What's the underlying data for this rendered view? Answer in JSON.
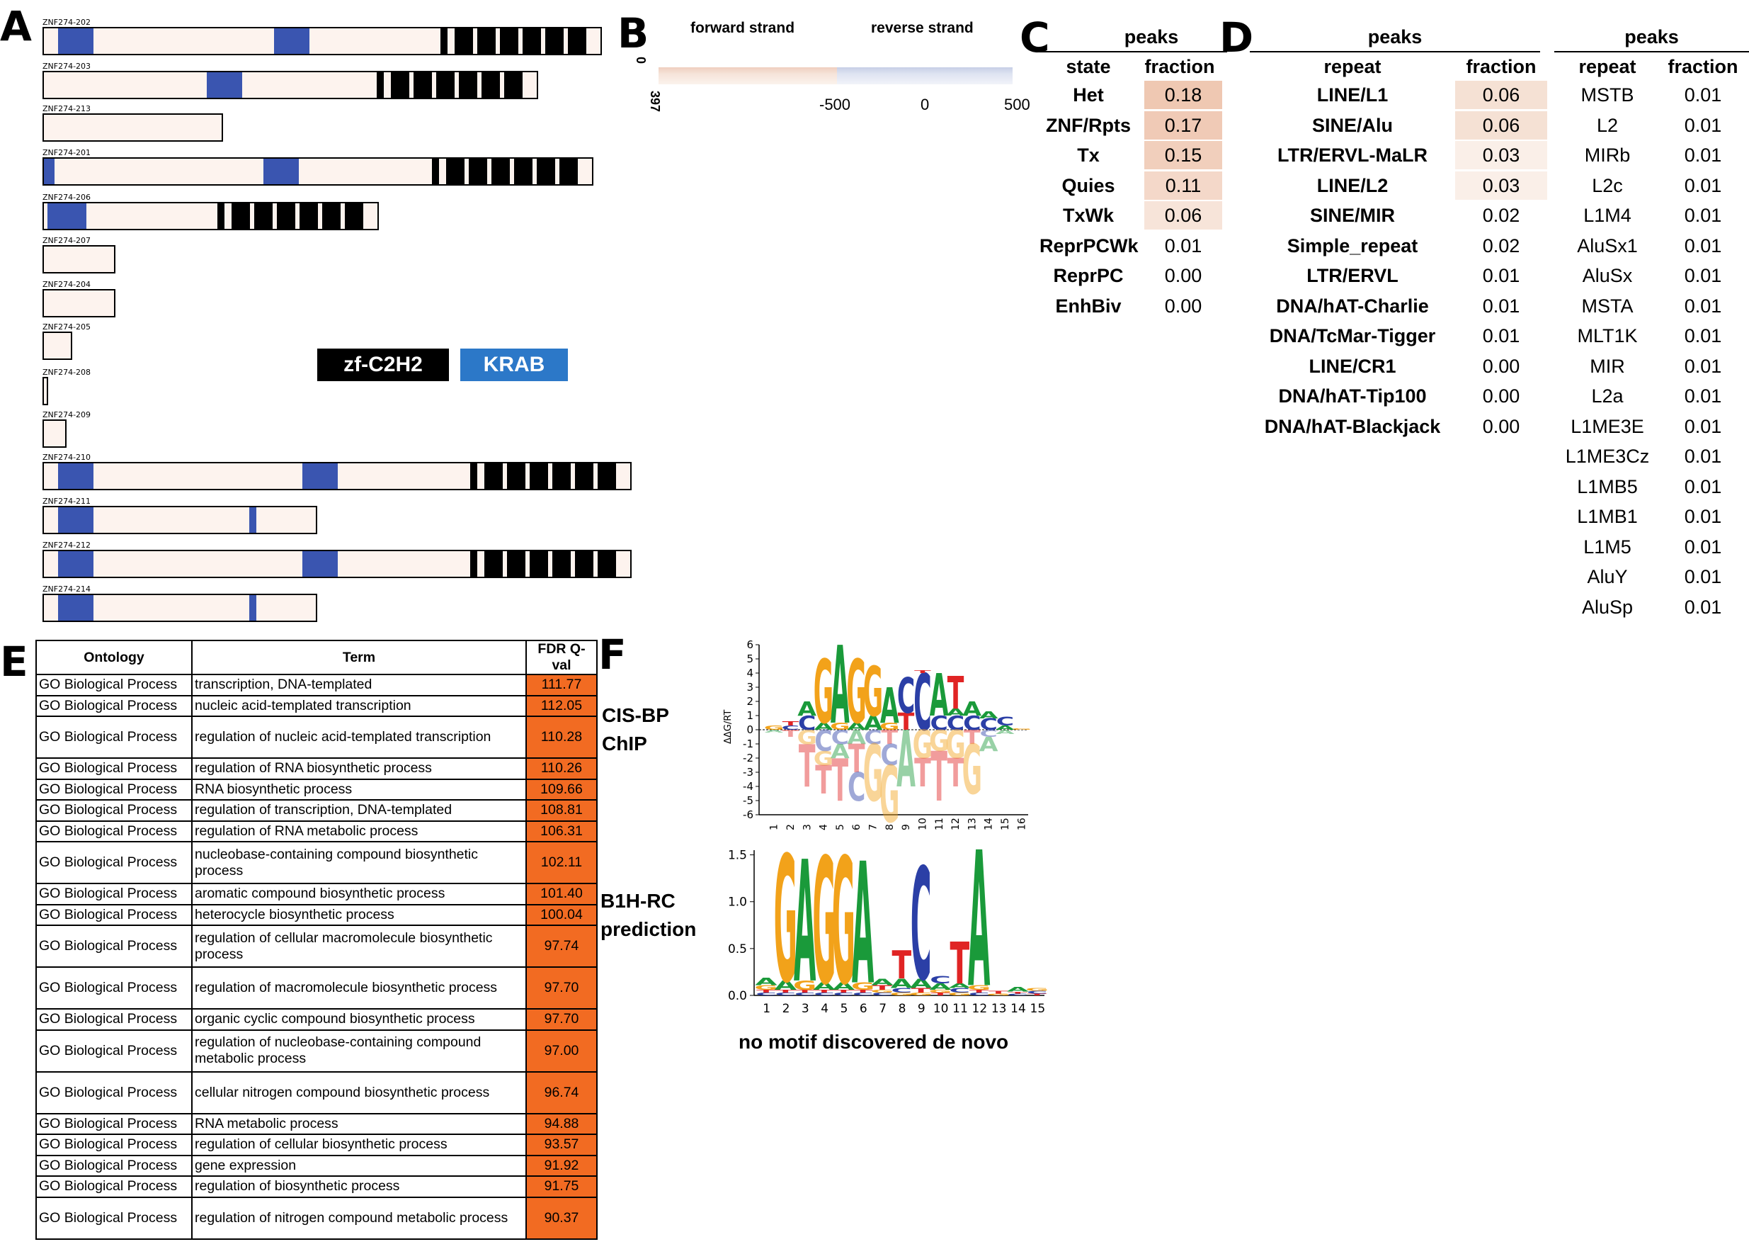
{
  "panel_labels": {
    "a": "A",
    "b": "B",
    "c": "C",
    "d": "D",
    "e": "E",
    "f": "F"
  },
  "colors": {
    "krab": "#3a55b0",
    "zf": "#000000",
    "transcript_fill": "#fdf3ee",
    "fdr_fill": "#f26b22",
    "legend_krab": "#2c78c8",
    "heat_top": "#f3d6c4"
  },
  "panel_a": {
    "transcripts": [
      {
        "name": "ZNF274-202",
        "length": 790,
        "krab": [
          [
            20,
            70
          ],
          [
            325,
            375
          ]
        ],
        "zf_count": 6
      },
      {
        "name": "ZNF274-203",
        "length": 700,
        "krab": [
          [
            230,
            280
          ]
        ],
        "zf_count": 6
      },
      {
        "name": "ZNF274-213",
        "length": 255,
        "krab": [],
        "zf_count": 0
      },
      {
        "name": "ZNF274-201",
        "length": 778,
        "krab": [
          [
            0,
            15
          ],
          [
            310,
            360
          ]
        ],
        "zf_count": 6
      },
      {
        "name": "ZNF274-206",
        "length": 475,
        "krab": [
          [
            5,
            60
          ]
        ],
        "zf_count": 6
      },
      {
        "name": "ZNF274-207",
        "length": 103,
        "krab": [],
        "zf_count": 0
      },
      {
        "name": "ZNF274-204",
        "length": 103,
        "krab": [],
        "zf_count": 0
      },
      {
        "name": "ZNF274-205",
        "length": 42,
        "krab": [],
        "zf_count": 0
      },
      {
        "name": "ZNF274-208",
        "length": 8,
        "krab": [],
        "zf_count": 0
      },
      {
        "name": "ZNF274-209",
        "length": 34,
        "krab": [],
        "zf_count": 0
      },
      {
        "name": "ZNF274-210",
        "length": 832,
        "krab": [
          [
            20,
            70
          ],
          [
            365,
            415
          ]
        ],
        "zf_count": 6
      },
      {
        "name": "ZNF274-211",
        "length": 388,
        "krab": [
          [
            20,
            70
          ],
          [
            290,
            300
          ]
        ],
        "zf_count": 0
      },
      {
        "name": "ZNF274-212",
        "length": 832,
        "krab": [
          [
            20,
            70
          ],
          [
            365,
            415
          ]
        ],
        "zf_count": 6
      },
      {
        "name": "ZNF274-214",
        "length": 388,
        "krab": [
          [
            20,
            70
          ],
          [
            290,
            300
          ]
        ],
        "zf_count": 0
      }
    ],
    "legend": {
      "zf": "zf-C2H2",
      "krab": "KRAB"
    }
  },
  "panel_b": {
    "forward": "forward strand",
    "reverse": "reverse strand",
    "y_top": "0",
    "y_bottom": "397",
    "x_ticks": [
      "-500",
      "0",
      "500"
    ]
  },
  "panel_c": {
    "title": "peaks",
    "col_state": "state",
    "col_fraction": "fraction",
    "rows": [
      {
        "state": "Het",
        "fraction": "0.18"
      },
      {
        "state": "ZNF/Rpts",
        "fraction": "0.17"
      },
      {
        "state": "Tx",
        "fraction": "0.15"
      },
      {
        "state": "Quies",
        "fraction": "0.11"
      },
      {
        "state": "TxWk",
        "fraction": "0.06"
      },
      {
        "state": "ReprPCWk",
        "fraction": "0.01"
      },
      {
        "state": "ReprPC",
        "fraction": "0.00"
      },
      {
        "state": "EnhBiv",
        "fraction": "0.00"
      }
    ]
  },
  "panel_d": {
    "left": {
      "title": "peaks",
      "col_repeat": "repeat",
      "col_fraction": "fraction",
      "rows": [
        {
          "repeat": "LINE/L1",
          "fraction": "0.06"
        },
        {
          "repeat": "SINE/Alu",
          "fraction": "0.06"
        },
        {
          "repeat": "LTR/ERVL-MaLR",
          "fraction": "0.03"
        },
        {
          "repeat": "LINE/L2",
          "fraction": "0.03"
        },
        {
          "repeat": "SINE/MIR",
          "fraction": "0.02"
        },
        {
          "repeat": "Simple_repeat",
          "fraction": "0.02"
        },
        {
          "repeat": "LTR/ERVL",
          "fraction": "0.01"
        },
        {
          "repeat": "DNA/hAT-Charlie",
          "fraction": "0.01"
        },
        {
          "repeat": "DNA/TcMar-Tigger",
          "fraction": "0.01"
        },
        {
          "repeat": "LINE/CR1",
          "fraction": "0.00"
        },
        {
          "repeat": "DNA/hAT-Tip100",
          "fraction": "0.00"
        },
        {
          "repeat": "DNA/hAT-Blackjack",
          "fraction": "0.00"
        }
      ]
    },
    "right": {
      "title": "peaks",
      "col_repeat": "repeat",
      "col_fraction": "fraction",
      "rows": [
        {
          "repeat": "MSTB",
          "fraction": "0.01"
        },
        {
          "repeat": "L2",
          "fraction": "0.01"
        },
        {
          "repeat": "MIRb",
          "fraction": "0.01"
        },
        {
          "repeat": "L2c",
          "fraction": "0.01"
        },
        {
          "repeat": "L1M4",
          "fraction": "0.01"
        },
        {
          "repeat": "AluSx1",
          "fraction": "0.01"
        },
        {
          "repeat": "AluSx",
          "fraction": "0.01"
        },
        {
          "repeat": "MSTA",
          "fraction": "0.01"
        },
        {
          "repeat": "MLT1K",
          "fraction": "0.01"
        },
        {
          "repeat": "MIR",
          "fraction": "0.01"
        },
        {
          "repeat": "L2a",
          "fraction": "0.01"
        },
        {
          "repeat": "L1ME3E",
          "fraction": "0.01"
        },
        {
          "repeat": "L1ME3Cz",
          "fraction": "0.01"
        },
        {
          "repeat": "L1MB5",
          "fraction": "0.01"
        },
        {
          "repeat": "L1MB1",
          "fraction": "0.01"
        },
        {
          "repeat": "L1M5",
          "fraction": "0.01"
        },
        {
          "repeat": "AluY",
          "fraction": "0.01"
        },
        {
          "repeat": "AluSp",
          "fraction": "0.01"
        }
      ]
    }
  },
  "panel_e": {
    "headers": [
      "Ontology",
      "Term",
      "FDR Q-val"
    ],
    "rows": [
      {
        "ontology": "GO Biological Process",
        "term": "transcription, DNA-templated",
        "fdr": "111.77"
      },
      {
        "ontology": "GO Biological Process",
        "term": "nucleic acid-templated transcription",
        "fdr": "112.05"
      },
      {
        "ontology": "GO Biological Process",
        "term": "regulation of nucleic acid-templated transcription",
        "fdr": "110.28"
      },
      {
        "ontology": "GO Biological Process",
        "term": "regulation of RNA biosynthetic process",
        "fdr": "110.26"
      },
      {
        "ontology": "GO Biological Process",
        "term": "RNA biosynthetic process",
        "fdr": "109.66"
      },
      {
        "ontology": "GO Biological Process",
        "term": "regulation of transcription, DNA-templated",
        "fdr": "108.81"
      },
      {
        "ontology": "GO Biological Process",
        "term": "regulation of RNA metabolic process",
        "fdr": "106.31"
      },
      {
        "ontology": "GO Biological Process",
        "term": "nucleobase-containing compound biosynthetic process",
        "fdr": "102.11"
      },
      {
        "ontology": "GO Biological Process",
        "term": "aromatic compound biosynthetic process",
        "fdr": "101.40"
      },
      {
        "ontology": "GO Biological Process",
        "term": "heterocycle biosynthetic process",
        "fdr": "100.04"
      },
      {
        "ontology": "GO Biological Process",
        "term": "regulation of cellular macromolecule biosynthetic process",
        "fdr": "97.74"
      },
      {
        "ontology": "GO Biological Process",
        "term": "regulation of macromolecule biosynthetic process",
        "fdr": "97.70"
      },
      {
        "ontology": "GO Biological Process",
        "term": "organic cyclic compound biosynthetic process",
        "fdr": "97.70"
      },
      {
        "ontology": "GO Biological Process",
        "term": "regulation of nucleobase-containing compound metabolic process",
        "fdr": "97.00"
      },
      {
        "ontology": "GO Biological Process",
        "term": "cellular nitrogen compound biosynthetic process",
        "fdr": "96.74"
      },
      {
        "ontology": "GO Biological Process",
        "term": "RNA metabolic process",
        "fdr": "94.88"
      },
      {
        "ontology": "GO Biological Process",
        "term": "regulation of cellular biosynthetic process",
        "fdr": "93.57"
      },
      {
        "ontology": "GO Biological Process",
        "term": "gene expression",
        "fdr": "91.92"
      },
      {
        "ontology": "GO Biological Process",
        "term": "regulation of biosynthetic process",
        "fdr": "91.75"
      },
      {
        "ontology": "GO Biological Process",
        "term": "regulation of nitrogen compound metabolic process",
        "fdr": "90.37"
      }
    ]
  },
  "panel_f": {
    "label_cisbp": "CIS-BP\nChIP",
    "label_b1h": "B1H-RC\nprediction",
    "top_logo": {
      "y_label": "ΔΔG/RT",
      "y_ticks": [
        "6",
        "5",
        "4",
        "3",
        "2",
        "1",
        "0",
        "-1",
        "-2",
        "-3",
        "-4",
        "-5",
        "-6"
      ],
      "x_ticks": [
        "1",
        "2",
        "3",
        "4",
        "5",
        "6",
        "7",
        "8",
        "9",
        "10",
        "11",
        "12",
        "13",
        "14",
        "15",
        "16"
      ],
      "letters": "GAGGAACTCATCACAC"
    },
    "bottom_logo": {
      "y_ticks": [
        "1.5",
        "1.0",
        "0.5",
        "0.0"
      ],
      "x_ticks": [
        "1",
        "2",
        "3",
        "4",
        "5",
        "6",
        "7",
        "8",
        "9",
        "10",
        "11",
        "12",
        "13",
        "14",
        "15"
      ],
      "letters": "GAGGA TC TA"
    },
    "note": "no motif discovered de novo"
  }
}
